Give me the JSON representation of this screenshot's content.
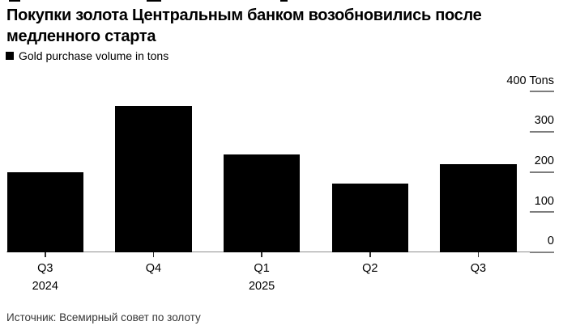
{
  "title": {
    "line1": "Покупки золота Центральным банком возобновились после",
    "line2": "медленного старта"
  },
  "legend": {
    "label": "Gold purchase volume in tons",
    "swatch_color": "#000000"
  },
  "source": "Источник: Всемирный совет по золоту",
  "chart_data": {
    "type": "bar",
    "title": "Покупки золота Центральным банком возобновились после медленного старта",
    "legend": [
      "Gold purchase volume in tons"
    ],
    "categories": [
      "Q3 2024",
      "Q4 2024",
      "Q1 2025",
      "Q2 2025",
      "Q3 2025"
    ],
    "values": [
      200,
      365,
      243,
      170,
      220
    ],
    "unit": "Tons",
    "x_tick_labels": [
      {
        "label": "Q3",
        "sublabel": "2024"
      },
      {
        "label": "Q4",
        "sublabel": ""
      },
      {
        "label": "Q1",
        "sublabel": "2025"
      },
      {
        "label": "Q2",
        "sublabel": ""
      },
      {
        "label": "Q3",
        "sublabel": ""
      }
    ],
    "y_ticks": [
      {
        "value": 400,
        "label": "400 Tons"
      },
      {
        "value": 300,
        "label": "300"
      },
      {
        "value": 200,
        "label": "200"
      },
      {
        "value": 100,
        "label": "100"
      },
      {
        "value": 0,
        "label": "0"
      }
    ],
    "ylim": [
      0,
      400
    ],
    "bar_color": "#000000",
    "axis_tick_color": "#7d7d7d",
    "baseline_color": "#8e8e8e",
    "legend_position": "top-left",
    "y_axis_side": "right",
    "grid": false
  }
}
